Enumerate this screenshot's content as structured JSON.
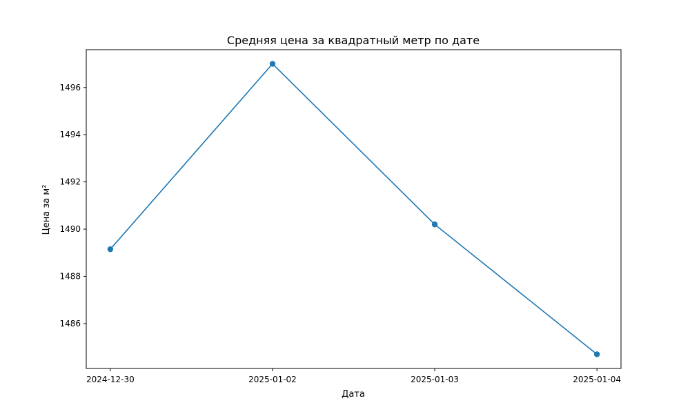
{
  "chart_data": {
    "type": "line",
    "title": "Средняя цена за квадратный метр по дате",
    "xlabel": "Дата",
    "ylabel": "Цена за м²",
    "categories": [
      "2024-12-30",
      "2025-01-02",
      "2025-01-03",
      "2025-01-04"
    ],
    "values": [
      1489.15,
      1497.0,
      1490.2,
      1484.7
    ],
    "yticks": [
      "1486",
      "1488",
      "1490",
      "1492",
      "1494",
      "1496"
    ],
    "ylim": [
      1484.1,
      1497.6
    ],
    "grid": false,
    "marker": "circle",
    "color": "#1f77b4"
  }
}
